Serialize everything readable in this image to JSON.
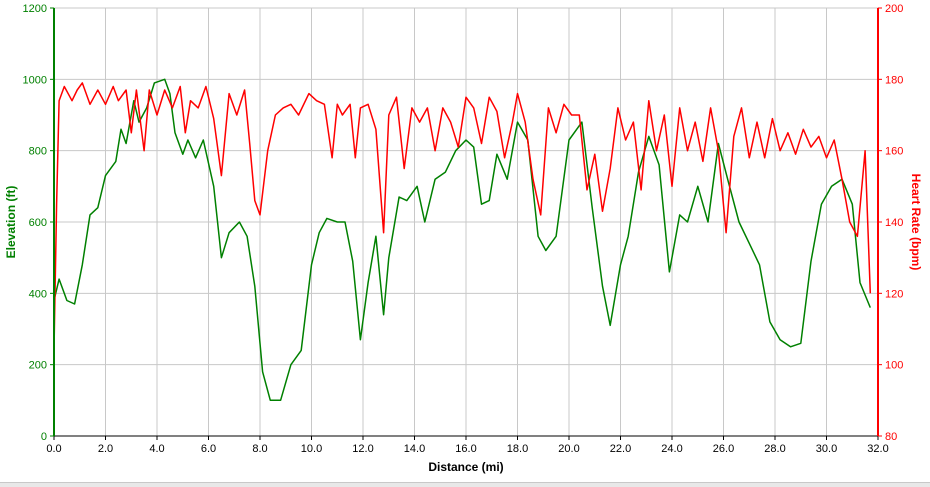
{
  "chart_data": {
    "type": "line",
    "title": "",
    "xlabel": "Distance (mi)",
    "ylabel_left": "Elevation (ft)",
    "ylabel_right": "Heart Rate (bpm)",
    "xlim": [
      0,
      32
    ],
    "ylim_left": [
      0,
      1200
    ],
    "ylim_right": [
      80,
      200
    ],
    "x_ticks": [
      "0.0",
      "2.0",
      "4.0",
      "6.0",
      "8.0",
      "10.0",
      "12.0",
      "14.0",
      "16.0",
      "18.0",
      "20.0",
      "22.0",
      "24.0",
      "26.0",
      "28.0",
      "30.0",
      "32.0"
    ],
    "y_left_ticks": [
      "0",
      "200",
      "400",
      "600",
      "800",
      "1000",
      "1200"
    ],
    "y_right_ticks": [
      "80",
      "100",
      "120",
      "140",
      "160",
      "180",
      "200"
    ],
    "grid": true,
    "colors": {
      "elevation": "#008000",
      "heart_rate": "#ff0000",
      "grid": "#c8c8c8"
    },
    "series": [
      {
        "name": "Elevation (ft)",
        "axis": "left",
        "points": [
          [
            0,
            380
          ],
          [
            0.2,
            440
          ],
          [
            0.5,
            380
          ],
          [
            0.8,
            370
          ],
          [
            1.1,
            480
          ],
          [
            1.4,
            620
          ],
          [
            1.7,
            640
          ],
          [
            2.0,
            730
          ],
          [
            2.4,
            770
          ],
          [
            2.6,
            860
          ],
          [
            2.8,
            820
          ],
          [
            3.1,
            940
          ],
          [
            3.3,
            880
          ],
          [
            3.6,
            920
          ],
          [
            3.9,
            990
          ],
          [
            4.3,
            1000
          ],
          [
            4.5,
            960
          ],
          [
            4.7,
            850
          ],
          [
            5.0,
            790
          ],
          [
            5.2,
            830
          ],
          [
            5.5,
            780
          ],
          [
            5.8,
            830
          ],
          [
            6.2,
            700
          ],
          [
            6.5,
            500
          ],
          [
            6.8,
            570
          ],
          [
            7.2,
            600
          ],
          [
            7.5,
            560
          ],
          [
            7.8,
            420
          ],
          [
            8.1,
            180
          ],
          [
            8.4,
            100
          ],
          [
            8.8,
            100
          ],
          [
            9.2,
            200
          ],
          [
            9.6,
            240
          ],
          [
            10.0,
            480
          ],
          [
            10.3,
            570
          ],
          [
            10.6,
            610
          ],
          [
            11.0,
            600
          ],
          [
            11.3,
            600
          ],
          [
            11.6,
            490
          ],
          [
            11.9,
            270
          ],
          [
            12.2,
            430
          ],
          [
            12.5,
            560
          ],
          [
            12.8,
            340
          ],
          [
            13.0,
            500
          ],
          [
            13.4,
            670
          ],
          [
            13.7,
            660
          ],
          [
            14.1,
            700
          ],
          [
            14.4,
            600
          ],
          [
            14.8,
            720
          ],
          [
            15.2,
            740
          ],
          [
            15.6,
            800
          ],
          [
            16.0,
            830
          ],
          [
            16.3,
            810
          ],
          [
            16.6,
            650
          ],
          [
            16.9,
            660
          ],
          [
            17.2,
            790
          ],
          [
            17.6,
            720
          ],
          [
            18.0,
            880
          ],
          [
            18.4,
            830
          ],
          [
            18.8,
            560
          ],
          [
            19.1,
            520
          ],
          [
            19.5,
            560
          ],
          [
            20.0,
            830
          ],
          [
            20.5,
            880
          ],
          [
            20.9,
            640
          ],
          [
            21.3,
            420
          ],
          [
            21.6,
            310
          ],
          [
            22.0,
            480
          ],
          [
            22.3,
            560
          ],
          [
            22.7,
            740
          ],
          [
            23.1,
            840
          ],
          [
            23.5,
            760
          ],
          [
            23.9,
            460
          ],
          [
            24.3,
            620
          ],
          [
            24.6,
            600
          ],
          [
            25.0,
            700
          ],
          [
            25.4,
            600
          ],
          [
            25.8,
            820
          ],
          [
            26.2,
            710
          ],
          [
            26.6,
            600
          ],
          [
            27.0,
            540
          ],
          [
            27.4,
            480
          ],
          [
            27.8,
            320
          ],
          [
            28.2,
            270
          ],
          [
            28.6,
            250
          ],
          [
            29.0,
            260
          ],
          [
            29.4,
            490
          ],
          [
            29.8,
            650
          ],
          [
            30.2,
            700
          ],
          [
            30.6,
            720
          ],
          [
            31.0,
            650
          ],
          [
            31.3,
            430
          ],
          [
            31.7,
            360
          ]
        ]
      },
      {
        "name": "Heart Rate (bpm)",
        "axis": "right",
        "points": [
          [
            0,
            104
          ],
          [
            0.1,
            145
          ],
          [
            0.2,
            174
          ],
          [
            0.4,
            178
          ],
          [
            0.7,
            174
          ],
          [
            0.9,
            177
          ],
          [
            1.1,
            179
          ],
          [
            1.4,
            173
          ],
          [
            1.7,
            177
          ],
          [
            2.0,
            173
          ],
          [
            2.3,
            178
          ],
          [
            2.5,
            174
          ],
          [
            2.8,
            177
          ],
          [
            3.0,
            165
          ],
          [
            3.2,
            177
          ],
          [
            3.5,
            160
          ],
          [
            3.7,
            177
          ],
          [
            4.0,
            170
          ],
          [
            4.3,
            177
          ],
          [
            4.6,
            172
          ],
          [
            4.9,
            178
          ],
          [
            5.1,
            165
          ],
          [
            5.3,
            174
          ],
          [
            5.6,
            172
          ],
          [
            5.9,
            178
          ],
          [
            6.2,
            169
          ],
          [
            6.5,
            153
          ],
          [
            6.8,
            176
          ],
          [
            7.1,
            170
          ],
          [
            7.4,
            177
          ],
          [
            7.6,
            162
          ],
          [
            7.8,
            146
          ],
          [
            8.0,
            142
          ],
          [
            8.3,
            160
          ],
          [
            8.6,
            170
          ],
          [
            8.9,
            172
          ],
          [
            9.2,
            173
          ],
          [
            9.5,
            170
          ],
          [
            9.9,
            176
          ],
          [
            10.2,
            174
          ],
          [
            10.5,
            173
          ],
          [
            10.8,
            158
          ],
          [
            11.0,
            173
          ],
          [
            11.2,
            170
          ],
          [
            11.5,
            173
          ],
          [
            11.7,
            158
          ],
          [
            11.9,
            172
          ],
          [
            12.2,
            173
          ],
          [
            12.5,
            166
          ],
          [
            12.8,
            137
          ],
          [
            13.0,
            170
          ],
          [
            13.3,
            175
          ],
          [
            13.6,
            155
          ],
          [
            13.9,
            172
          ],
          [
            14.2,
            168
          ],
          [
            14.5,
            172
          ],
          [
            14.8,
            160
          ],
          [
            15.1,
            172
          ],
          [
            15.4,
            168
          ],
          [
            15.7,
            161
          ],
          [
            16.0,
            175
          ],
          [
            16.3,
            172
          ],
          [
            16.6,
            162
          ],
          [
            16.9,
            175
          ],
          [
            17.2,
            171
          ],
          [
            17.5,
            158
          ],
          [
            17.8,
            168
          ],
          [
            18.0,
            176
          ],
          [
            18.3,
            168
          ],
          [
            18.6,
            152
          ],
          [
            18.9,
            142
          ],
          [
            19.2,
            172
          ],
          [
            19.5,
            165
          ],
          [
            19.8,
            173
          ],
          [
            20.1,
            170
          ],
          [
            20.4,
            170
          ],
          [
            20.7,
            149
          ],
          [
            21.0,
            159
          ],
          [
            21.3,
            143
          ],
          [
            21.6,
            155
          ],
          [
            21.9,
            172
          ],
          [
            22.2,
            163
          ],
          [
            22.5,
            168
          ],
          [
            22.8,
            149
          ],
          [
            23.1,
            174
          ],
          [
            23.4,
            160
          ],
          [
            23.7,
            170
          ],
          [
            24.0,
            150
          ],
          [
            24.3,
            172
          ],
          [
            24.6,
            160
          ],
          [
            24.9,
            168
          ],
          [
            25.2,
            157
          ],
          [
            25.5,
            172
          ],
          [
            25.8,
            160
          ],
          [
            26.1,
            137
          ],
          [
            26.4,
            164
          ],
          [
            26.7,
            172
          ],
          [
            27.0,
            158
          ],
          [
            27.3,
            168
          ],
          [
            27.6,
            158
          ],
          [
            27.9,
            169
          ],
          [
            28.2,
            160
          ],
          [
            28.5,
            165
          ],
          [
            28.8,
            159
          ],
          [
            29.1,
            166
          ],
          [
            29.4,
            161
          ],
          [
            29.7,
            164
          ],
          [
            30.0,
            158
          ],
          [
            30.3,
            163
          ],
          [
            30.6,
            152
          ],
          [
            30.9,
            140
          ],
          [
            31.2,
            136
          ],
          [
            31.5,
            160
          ],
          [
            31.7,
            120
          ]
        ]
      }
    ]
  }
}
